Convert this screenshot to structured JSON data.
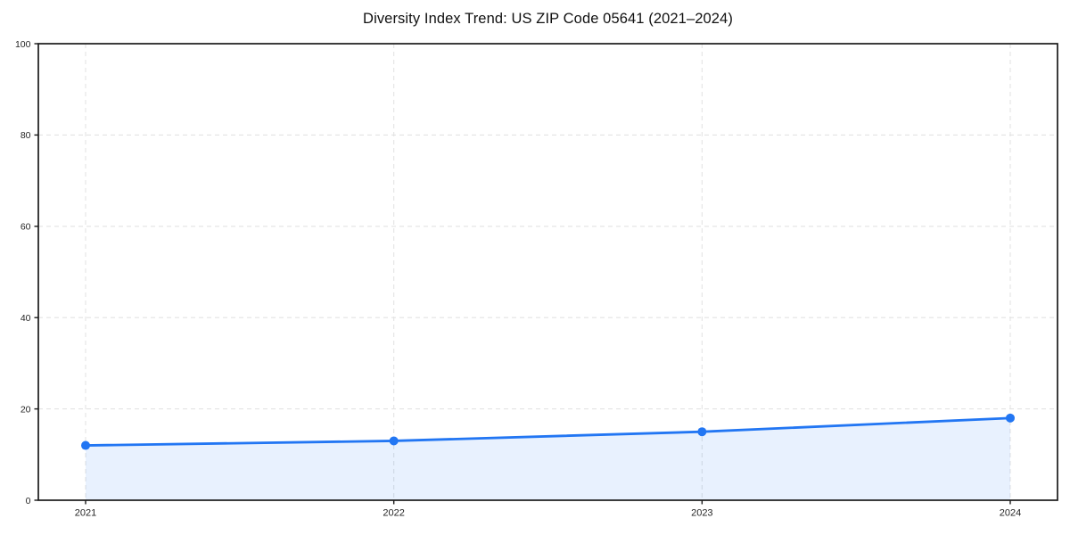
{
  "page": {
    "background_color": "#ffffff"
  },
  "chart_data": {
    "type": "line",
    "title": "Diversity Index Trend: US ZIP Code 05641 (2021–2024)",
    "x": [
      2021,
      2022,
      2023,
      2024
    ],
    "xticks": [
      "2021",
      "2022",
      "2023",
      "2024"
    ],
    "series": [
      {
        "name": "Diversity Index",
        "values": [
          12,
          13,
          15,
          18
        ]
      }
    ],
    "xlabel": "",
    "ylabel": "",
    "ylim": [
      0,
      100
    ],
    "yticks": [
      0,
      20,
      40,
      60,
      80,
      100
    ],
    "grid": true,
    "grid_style": "dashed",
    "legend_position": "none",
    "line_color": "#2276f3",
    "marker": "circle",
    "marker_color": "#2276f3",
    "area_fill": true,
    "fill_color": "#2276f3",
    "fill_opacity": 0.1,
    "gridline_color": "#e3e3e3",
    "spine_color": "#1a1a1a",
    "tick_label_color": "#262626"
  }
}
